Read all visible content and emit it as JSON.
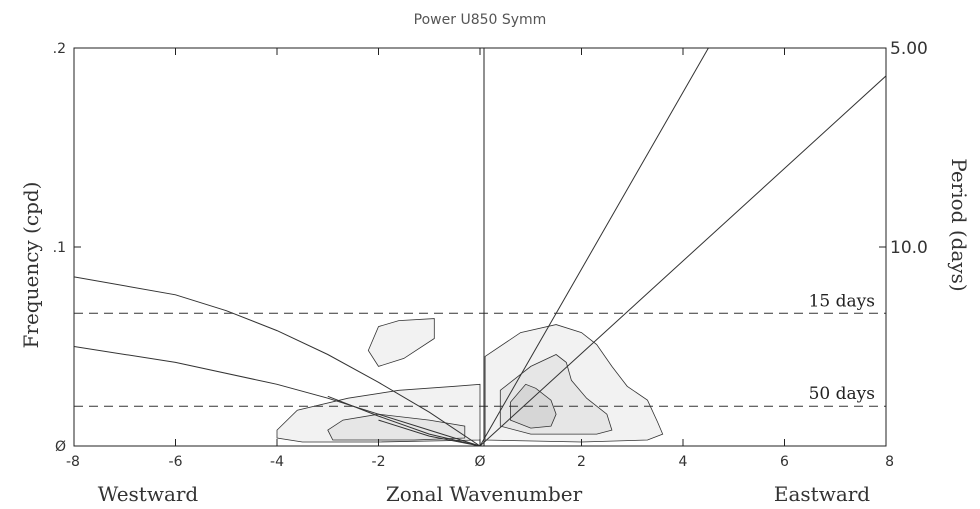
{
  "chart_data": {
    "type": "contour",
    "title": "Power U850 Symm",
    "xlabel": "Zonal Wavenumber",
    "xlabel_left": "Westward",
    "xlabel_right": "Eastward",
    "ylabel": "Frequency (cpd)",
    "ylabel_right": "Period (days)",
    "xlim": [
      -8,
      8
    ],
    "ylim": [
      0,
      0.2
    ],
    "x_ticks": [
      {
        "value": -8,
        "label": "-8"
      },
      {
        "value": -6,
        "label": "-6"
      },
      {
        "value": -4,
        "label": "-4"
      },
      {
        "value": -2,
        "label": "-2"
      },
      {
        "value": 0,
        "label": "Ø"
      },
      {
        "value": 2,
        "label": "2"
      },
      {
        "value": 4,
        "label": "4"
      },
      {
        "value": 6,
        "label": "6"
      },
      {
        "value": 8,
        "label": "8"
      }
    ],
    "y_ticks": [
      {
        "value": 0,
        "label": "Ø"
      },
      {
        "value": 0.1,
        "label": ".1"
      },
      {
        "value": 0.2,
        "label": ".2"
      }
    ],
    "right_ticks": [
      {
        "frequency": 0.2,
        "label": "5.00"
      },
      {
        "frequency": 0.1,
        "label": "10.0"
      }
    ],
    "reference_lines": [
      {
        "frequency": 0.0667,
        "label": "15 days"
      },
      {
        "frequency": 0.02,
        "label": "50 days"
      }
    ],
    "dispersion_curves": [
      {
        "points": [
          [
            0,
            0
          ],
          [
            4.5,
            0.2
          ]
        ]
      },
      {
        "points": [
          [
            0,
            0
          ],
          [
            8,
            0.186
          ]
        ]
      },
      {
        "points": [
          [
            -8,
            0.085
          ],
          [
            -6,
            0.076
          ],
          [
            -5,
            0.068
          ],
          [
            -4,
            0.058
          ],
          [
            -3,
            0.046
          ],
          [
            -2,
            0.032
          ],
          [
            -1,
            0.017
          ],
          [
            0,
            0
          ]
        ]
      },
      {
        "points": [
          [
            -8,
            0.05
          ],
          [
            -6,
            0.042
          ],
          [
            -4,
            0.031
          ],
          [
            -3,
            0.024
          ],
          [
            -2,
            0.016
          ],
          [
            -1,
            0.008
          ],
          [
            0,
            0
          ]
        ]
      },
      {
        "points": [
          [
            -3,
            0.025
          ],
          [
            -2,
            0.015
          ],
          [
            -1,
            0.006
          ],
          [
            0,
            0
          ]
        ]
      },
      {
        "points": [
          [
            -2,
            0.013
          ],
          [
            -1,
            0.005
          ],
          [
            0,
            0
          ]
        ]
      }
    ],
    "contours": [
      {
        "level": 1,
        "fill": "#f2f2f2",
        "points": [
          [
            -4.0,
            0.008
          ],
          [
            -3.6,
            0.018
          ],
          [
            -2.6,
            0.024
          ],
          [
            -1.6,
            0.028
          ],
          [
            -0.5,
            0.03
          ],
          [
            0,
            0.031
          ],
          [
            0,
            0.003
          ],
          [
            -2,
            0.002
          ],
          [
            -3.5,
            0.002
          ],
          [
            -4.0,
            0.004
          ]
        ]
      },
      {
        "level": 1,
        "fill": "#f2f2f2",
        "points": [
          [
            -2.2,
            0.048
          ],
          [
            -2.0,
            0.06
          ],
          [
            -1.6,
            0.063
          ],
          [
            -0.9,
            0.064
          ],
          [
            -0.9,
            0.054
          ],
          [
            -1.5,
            0.044
          ],
          [
            -2.0,
            0.04
          ]
        ]
      },
      {
        "level": 1,
        "fill": "#f2f2f2",
        "points": [
          [
            0.1,
            0.045
          ],
          [
            0.8,
            0.057
          ],
          [
            1.5,
            0.061
          ],
          [
            2.0,
            0.057
          ],
          [
            2.3,
            0.051
          ],
          [
            2.6,
            0.04
          ],
          [
            2.9,
            0.03
          ],
          [
            3.3,
            0.023
          ],
          [
            3.5,
            0.012
          ],
          [
            3.6,
            0.006
          ],
          [
            3.3,
            0.003
          ],
          [
            2,
            0.002
          ],
          [
            0.1,
            0.003
          ]
        ]
      },
      {
        "level": 2,
        "fill": "#e6e6e6",
        "points": [
          [
            -3.0,
            0.008
          ],
          [
            -2.7,
            0.013
          ],
          [
            -2.0,
            0.016
          ],
          [
            -1.0,
            0.013
          ],
          [
            -0.3,
            0.01
          ],
          [
            -0.3,
            0.004
          ],
          [
            -1.3,
            0.003
          ],
          [
            -2.9,
            0.003
          ]
        ]
      },
      {
        "level": 2,
        "fill": "#e6e6e6",
        "points": [
          [
            0.4,
            0.028
          ],
          [
            1.0,
            0.04
          ],
          [
            1.5,
            0.046
          ],
          [
            1.7,
            0.042
          ],
          [
            1.8,
            0.033
          ],
          [
            2.1,
            0.024
          ],
          [
            2.5,
            0.016
          ],
          [
            2.6,
            0.008
          ],
          [
            2.3,
            0.006
          ],
          [
            1.0,
            0.006
          ],
          [
            0.4,
            0.01
          ]
        ]
      },
      {
        "level": 3,
        "fill": "#d6d6d6",
        "points": [
          [
            0.6,
            0.022
          ],
          [
            0.9,
            0.031
          ],
          [
            1.1,
            0.029
          ],
          [
            1.4,
            0.023
          ],
          [
            1.5,
            0.016
          ],
          [
            1.4,
            0.01
          ],
          [
            1.0,
            0.009
          ],
          [
            0.6,
            0.013
          ]
        ]
      }
    ]
  }
}
